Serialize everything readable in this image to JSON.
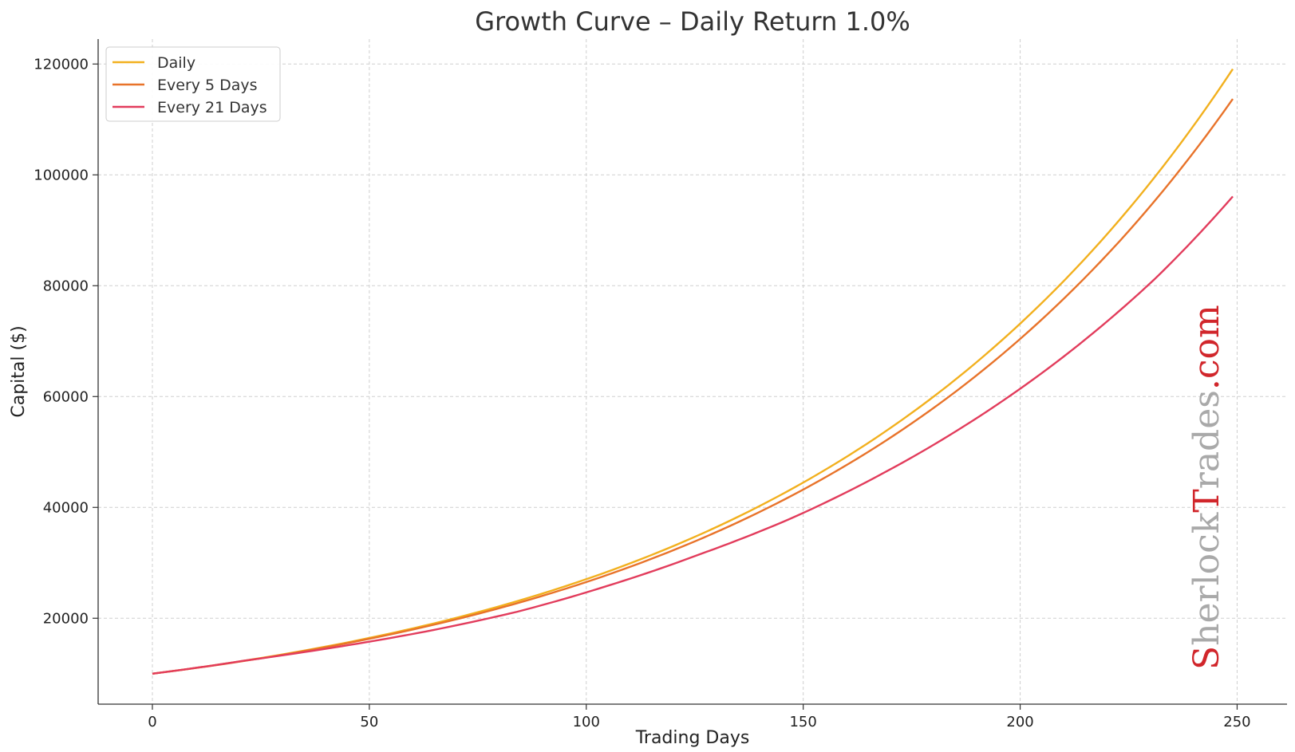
{
  "chart_data": {
    "type": "line",
    "title": "Growth Curve – Daily Return 1.0%",
    "xlabel": "Trading Days",
    "ylabel": "Capital ($)",
    "xlim": [
      -12.5,
      261.5
    ],
    "ylim": [
      4500,
      124500
    ],
    "xticks": [
      0,
      50,
      100,
      150,
      200,
      250
    ],
    "yticks": [
      20000,
      40000,
      60000,
      80000,
      100000,
      120000
    ],
    "grid": true,
    "legend_position": "top-left",
    "series": [
      {
        "name": "Daily",
        "color": "#f2b01e",
        "x": [
          0,
          25,
          50,
          75,
          100,
          125,
          150,
          175,
          200,
          225,
          249
        ],
        "values": [
          10000,
          12824,
          16446,
          21091,
          27048,
          34686,
          44484,
          57049,
          73160,
          93823,
          119100
        ]
      },
      {
        "name": "Every 5 Days",
        "color": "#e8732a",
        "x": [
          0,
          25,
          50,
          75,
          100,
          125,
          150,
          175,
          200,
          225,
          249
        ],
        "values": [
          10000,
          12763,
          16289,
          20789,
          26533,
          33864,
          43219,
          55160,
          70400,
          89850,
          113700
        ]
      },
      {
        "name": "Every 21 Days",
        "color": "#e23c5c",
        "x": [
          0,
          21,
          42,
          63,
          84,
          105,
          126,
          147,
          168,
          189,
          210,
          231,
          249
        ],
        "values": [
          10000,
          12324,
          14746,
          17602,
          21155,
          25877,
          31500,
          37950,
          46000,
          55620,
          67200,
          81200,
          96100
        ]
      }
    ]
  },
  "watermark": {
    "part1": "Sherlock",
    "part2": "Trades",
    "part3": ".com",
    "color_red": "#d1262b",
    "color_gray": "#a9a9a9"
  }
}
